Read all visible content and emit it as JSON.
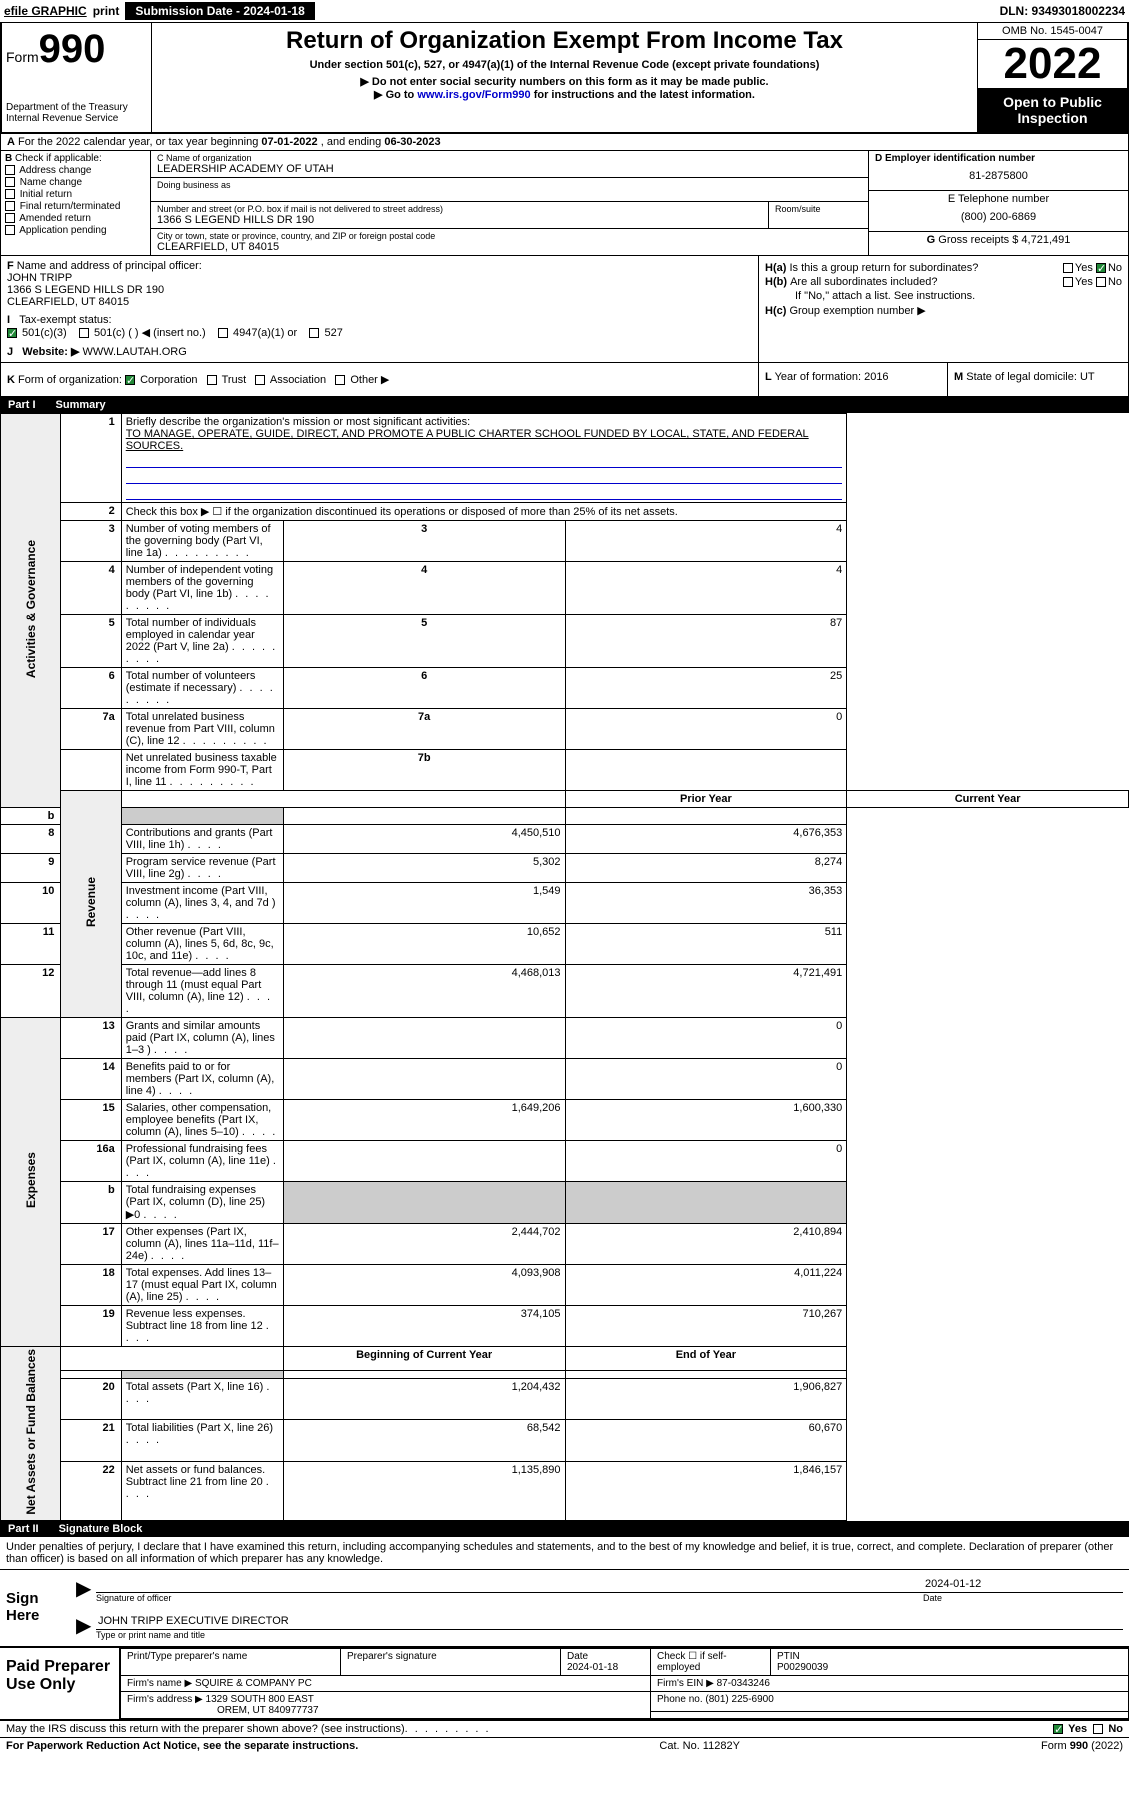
{
  "topbar": {
    "efile": "efile GRAPHIC",
    "print": "print",
    "sub_date_label": "Submission Date - 2024-01-18",
    "dln": "DLN: 93493018002234"
  },
  "header": {
    "form_word": "Form",
    "form_num": "990",
    "title": "Return of Organization Exempt From Income Tax",
    "subtitle": "Under section 501(c), 527, or 4947(a)(1) of the Internal Revenue Code (except private foundations)",
    "instr1": "Do not enter social security numbers on this form as it may be made public.",
    "instr2_pre": "Go to ",
    "instr2_link": "www.irs.gov/Form990",
    "instr2_post": " for instructions and the latest information.",
    "dept": "Department of the Treasury\nInternal Revenue Service",
    "omb": "OMB No. 1545-0047",
    "year": "2022",
    "open": "Open to Public Inspection"
  },
  "row_a": {
    "label": "A",
    "text_pre": "For the 2022 calendar year, or tax year beginning ",
    "begin": "07-01-2022",
    "text_mid": " , and ending ",
    "end": "06-30-2023"
  },
  "col_b": {
    "label": "B",
    "intro": "Check if applicable:",
    "items": [
      "Address change",
      "Name change",
      "Initial return",
      "Final return/terminated",
      "Amended return",
      "Application pending"
    ]
  },
  "col_c": {
    "name_label": "C Name of organization",
    "name": "LEADERSHIP ACADEMY OF UTAH",
    "dba_label": "Doing business as",
    "dba": "",
    "street_label": "Number and street (or P.O. box if mail is not delivered to street address)",
    "street": "1366 S LEGEND HILLS DR 190",
    "room_label": "Room/suite",
    "city_label": "City or town, state or province, country, and ZIP or foreign postal code",
    "city": "CLEARFIELD, UT  84015"
  },
  "col_d": {
    "label": "D Employer identification number",
    "ein": "81-2875800"
  },
  "col_e": {
    "label": "E Telephone number",
    "phone": "(800) 200-6869"
  },
  "col_g": {
    "label": "G",
    "text": "Gross receipts $",
    "val": "4,721,491"
  },
  "line_f": {
    "label": "F",
    "text": "Name and address of principal officer:",
    "name": "JOHN TRIPP",
    "addr1": "1366 S LEGEND HILLS DR 190",
    "addr2": "CLEARFIELD, UT  84015"
  },
  "line_i": {
    "label": "I",
    "text": "Tax-exempt status:",
    "opts": [
      "501(c)(3)",
      "501(c) (  ) ◀ (insert no.)",
      "4947(a)(1) or",
      "527"
    ],
    "checked": 0
  },
  "line_j": {
    "label": "J",
    "text": "Website: ▶",
    "val": "WWW.LAUTAH.ORG"
  },
  "line_k": {
    "label": "K",
    "text": "Form of organization:",
    "opts": [
      "Corporation",
      "Trust",
      "Association",
      "Other ▶"
    ],
    "checked": 0
  },
  "col_h": {
    "a_label": "H(a)",
    "a_text": "Is this a group return for subordinates?",
    "a_yes": "Yes",
    "a_no": "No",
    "a_checked": "no",
    "b_label": "H(b)",
    "b_text": "Are all subordinates included?",
    "b_yes": "Yes",
    "b_no": "No",
    "b_note": "If \"No,\" attach a list. See instructions.",
    "c_label": "H(c)",
    "c_text": "Group exemption number ▶"
  },
  "col_l": {
    "label": "L",
    "text": "Year of formation:",
    "val": "2016"
  },
  "col_m": {
    "label": "M",
    "text": "State of legal domicile:",
    "val": "UT"
  },
  "part1": {
    "num": "Part I",
    "title": "Summary"
  },
  "summary": {
    "sections": [
      {
        "label": "Activities & Governance",
        "type": "single",
        "mission_num": "1",
        "mission_label": "Briefly describe the organization's mission or most significant activities:",
        "mission_text": "TO MANAGE, OPERATE, GUIDE, DIRECT, AND PROMOTE A PUBLIC CHARTER SCHOOL FUNDED BY LOCAL, STATE, AND FEDERAL SOURCES.",
        "check2_num": "2",
        "check2_text": "Check this box ▶ ☐ if the organization discontinued its operations or disposed of more than 25% of its net assets.",
        "rows": [
          {
            "n": "3",
            "d": "Number of voting members of the governing body (Part VI, line 1a)",
            "box": "3",
            "v": "4"
          },
          {
            "n": "4",
            "d": "Number of independent voting members of the governing body (Part VI, line 1b)",
            "box": "4",
            "v": "4"
          },
          {
            "n": "5",
            "d": "Total number of individuals employed in calendar year 2022 (Part V, line 2a)",
            "box": "5",
            "v": "87"
          },
          {
            "n": "6",
            "d": "Total number of volunteers (estimate if necessary)",
            "box": "6",
            "v": "25"
          },
          {
            "n": "7a",
            "d": "Total unrelated business revenue from Part VIII, column (C), line 12",
            "box": "7a",
            "v": "0"
          },
          {
            "n": "",
            "d": "Net unrelated business taxable income from Form 990-T, Part I, line 11",
            "box": "7b",
            "v": ""
          }
        ]
      },
      {
        "label": "Revenue",
        "type": "double",
        "hdr_prior": "Prior Year",
        "hdr_curr": "Current Year",
        "rows": [
          {
            "n": "b",
            "d": "",
            "shaded": true,
            "p": "",
            "c": ""
          },
          {
            "n": "8",
            "d": "Contributions and grants (Part VIII, line 1h)",
            "p": "4,450,510",
            "c": "4,676,353"
          },
          {
            "n": "9",
            "d": "Program service revenue (Part VIII, line 2g)",
            "p": "5,302",
            "c": "8,274"
          },
          {
            "n": "10",
            "d": "Investment income (Part VIII, column (A), lines 3, 4, and 7d )",
            "p": "1,549",
            "c": "36,353"
          },
          {
            "n": "11",
            "d": "Other revenue (Part VIII, column (A), lines 5, 6d, 8c, 9c, 10c, and 11e)",
            "p": "10,652",
            "c": "511"
          },
          {
            "n": "12",
            "d": "Total revenue—add lines 8 through 11 (must equal Part VIII, column (A), line 12)",
            "p": "4,468,013",
            "c": "4,721,491"
          }
        ]
      },
      {
        "label": "Expenses",
        "type": "double",
        "rows": [
          {
            "n": "13",
            "d": "Grants and similar amounts paid (Part IX, column (A), lines 1–3 )",
            "p": "",
            "c": "0"
          },
          {
            "n": "14",
            "d": "Benefits paid to or for members (Part IX, column (A), line 4)",
            "p": "",
            "c": "0"
          },
          {
            "n": "15",
            "d": "Salaries, other compensation, employee benefits (Part IX, column (A), lines 5–10)",
            "p": "1,649,206",
            "c": "1,600,330"
          },
          {
            "n": "16a",
            "d": "Professional fundraising fees (Part IX, column (A), line 11e)",
            "p": "",
            "c": "0"
          },
          {
            "n": "b",
            "d": "Total fundraising expenses (Part IX, column (D), line 25) ▶0",
            "p": "",
            "c": "",
            "shaded_pc": true
          },
          {
            "n": "17",
            "d": "Other expenses (Part IX, column (A), lines 11a–11d, 11f–24e)",
            "p": "2,444,702",
            "c": "2,410,894"
          },
          {
            "n": "18",
            "d": "Total expenses. Add lines 13–17 (must equal Part IX, column (A), line 25)",
            "p": "4,093,908",
            "c": "4,011,224"
          },
          {
            "n": "19",
            "d": "Revenue less expenses. Subtract line 18 from line 12",
            "p": "374,105",
            "c": "710,267"
          }
        ]
      },
      {
        "label": "Net Assets or Fund Balances",
        "type": "double",
        "hdr_prior": "Beginning of Current Year",
        "hdr_curr": "End of Year",
        "rows": [
          {
            "n": "",
            "d": "",
            "shaded": true,
            "p": "",
            "c": ""
          },
          {
            "n": "20",
            "d": "Total assets (Part X, line 16)",
            "p": "1,204,432",
            "c": "1,906,827"
          },
          {
            "n": "21",
            "d": "Total liabilities (Part X, line 26)",
            "p": "68,542",
            "c": "60,670"
          },
          {
            "n": "22",
            "d": "Net assets or fund balances. Subtract line 21 from line 20",
            "p": "1,135,890",
            "c": "1,846,157"
          }
        ]
      }
    ]
  },
  "part2": {
    "num": "Part II",
    "title": "Signature Block"
  },
  "sig": {
    "intro": "Under penalties of perjury, I declare that I have examined this return, including accompanying schedules and statements, and to the best of my knowledge and belief, it is true, correct, and complete. Declaration of preparer (other than officer) is based on all information of which preparer has any knowledge.",
    "here": "Sign Here",
    "officer_sig_label": "Signature of officer",
    "date_label": "Date",
    "date_val": "2024-01-12",
    "officer_name": "JOHN TRIPP EXECUTIVE DIRECTOR",
    "officer_name_label": "Type or print name and title"
  },
  "paid": {
    "label": "Paid Preparer Use Only",
    "r1": {
      "c1": "Print/Type preparer's name",
      "c2": "Preparer's signature",
      "c3": "Date",
      "c3v": "2024-01-18",
      "c4": "Check ☐ if self-employed",
      "c5": "PTIN",
      "c5v": "P00290039"
    },
    "r2": {
      "c1": "Firm's name    ▶",
      "c1v": "SQUIRE & COMPANY PC",
      "c2": "Firm's EIN ▶",
      "c2v": "87-0343246"
    },
    "r3": {
      "c1": "Firm's address ▶",
      "c1v": "1329 SOUTH 800 EAST",
      "c2": "Phone no.",
      "c2v": "(801) 225-6900"
    },
    "r4": {
      "c1v": "OREM, UT 840977737"
    }
  },
  "footer": {
    "discuss": "May the IRS discuss this return with the preparer shown above? (see instructions)",
    "yes": "Yes",
    "no": "No",
    "pra": "For Paperwork Reduction Act Notice, see the separate instructions.",
    "cat": "Cat. No. 11282Y",
    "form": "Form 990 (2022)"
  },
  "colors": {
    "link": "#0000cc",
    "check_green": "#218838",
    "black": "#000000",
    "shade": "#cccccc"
  }
}
